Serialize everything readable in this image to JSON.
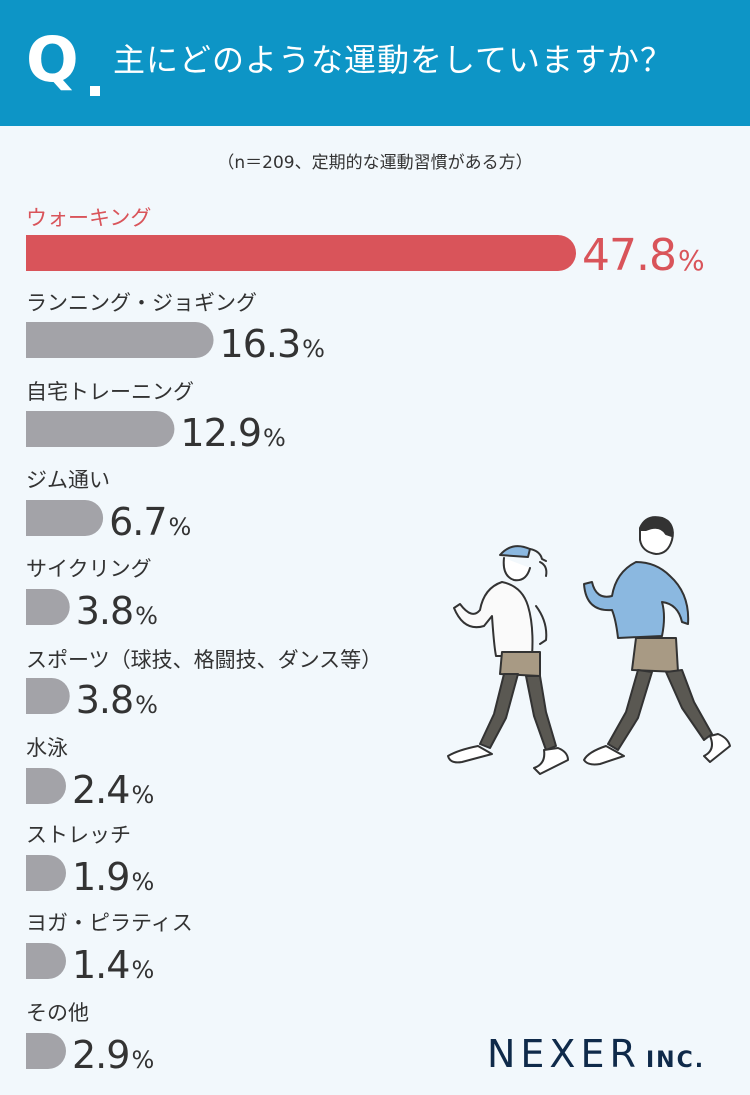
{
  "header": {
    "q_letter": "Q",
    "question": "主にどのような運動をしていますか？"
  },
  "note": "（n＝209、定期的な運動習慣がある方）",
  "colors": {
    "highlight": "#d9545a",
    "bar": "#a3a3a8",
    "header": "#0d95c6"
  },
  "chart_data": {
    "type": "bar",
    "orientation": "horizontal",
    "unit": "%",
    "categories": [
      "ウォーキング",
      "ランニング・ジョギング",
      "自宅トレーニング",
      "ジム通い",
      "サイクリング",
      "スポーツ（球技、格闘技、ダンス等）",
      "水泳",
      "ストレッチ",
      "ヨガ・ピラティス",
      "その他"
    ],
    "values": [
      47.8,
      16.3,
      12.9,
      6.7,
      3.8,
      3.8,
      2.4,
      1.9,
      1.4,
      2.9
    ],
    "labels": [
      "47.8",
      "16.3",
      "12.9",
      "6.7",
      "3.8",
      "3.8",
      "2.4",
      "1.9",
      "1.4",
      "2.9"
    ],
    "highlight_index": 0,
    "xlim": [
      0,
      48
    ]
  },
  "logo": {
    "main": "NEXER",
    "suffix": "INC."
  }
}
